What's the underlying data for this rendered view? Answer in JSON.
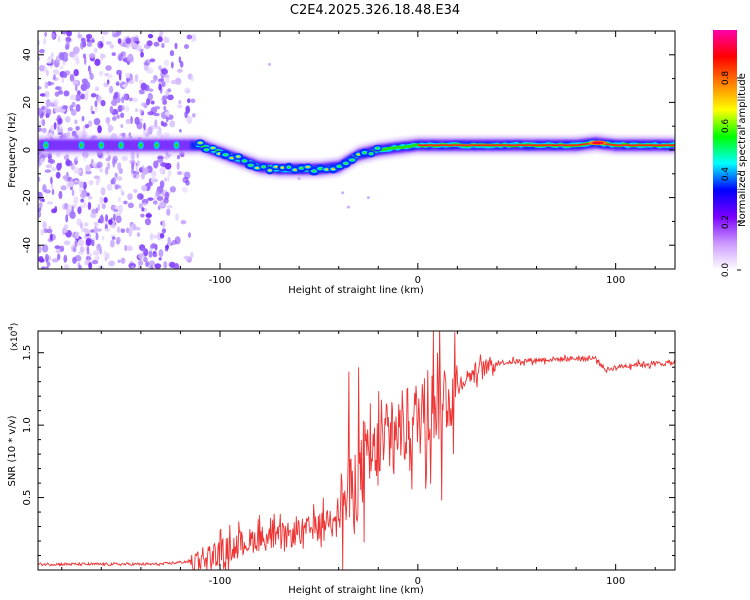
{
  "title": "C2E4.2025.326.18.48.E34",
  "chart_data": [
    {
      "type": "heatmap",
      "name": "spectrogram",
      "xlabel": "Height of straight line (km)",
      "ylabel": "Frequency (Hz)",
      "xlim": [
        -192,
        130
      ],
      "ylim": [
        -50,
        50
      ],
      "xticks": [
        -100,
        0,
        100
      ],
      "yticks": [
        -40,
        -20,
        0,
        20,
        40
      ],
      "colorbar": {
        "label": "Normalized spectral amplitude",
        "range": [
          0,
          1
        ],
        "ticks": [
          "0.0",
          "0.2",
          "0.4",
          "0.6",
          "0.8"
        ],
        "colors": [
          "#ffffff",
          "#cc99ff",
          "#7b00ff",
          "#0000ff",
          "#00ffff",
          "#00ff00",
          "#ffff00",
          "#ff8000",
          "#ff0000",
          "#ff00aa"
        ]
      },
      "noise_region": [
        -192,
        -113
      ],
      "ridge": [
        [
          -192,
          2
        ],
        [
          -170,
          2
        ],
        [
          -140,
          2
        ],
        [
          -120,
          2
        ],
        [
          -110,
          2
        ],
        [
          -100,
          -1
        ],
        [
          -90,
          -4
        ],
        [
          -80,
          -7
        ],
        [
          -70,
          -8
        ],
        [
          -60,
          -8
        ],
        [
          -50,
          -8
        ],
        [
          -40,
          -7
        ],
        [
          -30,
          -2
        ],
        [
          -20,
          0
        ],
        [
          -10,
          1
        ],
        [
          0,
          2
        ],
        [
          20,
          2
        ],
        [
          60,
          2
        ],
        [
          80,
          2
        ],
        [
          90,
          3
        ],
        [
          100,
          2
        ],
        [
          130,
          2
        ]
      ]
    },
    {
      "type": "line",
      "name": "snr",
      "xlabel": "Height of straight line (km)",
      "ylabel": "SNR (10 * v/v)",
      "scale_note": "(x10",
      "scale_exp": "4",
      "scale_close": ")",
      "xlim": [
        -192,
        130
      ],
      "ylim": [
        0,
        1.65
      ],
      "xticks": [
        -100,
        0,
        100
      ],
      "yticks": [
        0.5,
        1.0,
        1.5
      ],
      "ytick_labels": [
        "0.5",
        "1.0",
        "1.5"
      ],
      "color": "#ee3333",
      "envelope": [
        [
          -192,
          0.04
        ],
        [
          -130,
          0.04
        ],
        [
          -115,
          0.06
        ],
        [
          -100,
          0.12
        ],
        [
          -90,
          0.18
        ],
        [
          -80,
          0.22
        ],
        [
          -70,
          0.22
        ],
        [
          -60,
          0.26
        ],
        [
          -50,
          0.3
        ],
        [
          -40,
          0.42
        ],
        [
          -35,
          0.5
        ],
        [
          -30,
          0.62
        ],
        [
          -25,
          0.72
        ],
        [
          -20,
          0.82
        ],
        [
          -10,
          0.95
        ],
        [
          0,
          1.05
        ],
        [
          10,
          1.15
        ],
        [
          20,
          1.28
        ],
        [
          30,
          1.38
        ],
        [
          40,
          1.43
        ],
        [
          60,
          1.45
        ],
        [
          80,
          1.46
        ],
        [
          90,
          1.46
        ],
        [
          95,
          1.38
        ],
        [
          100,
          1.4
        ],
        [
          110,
          1.42
        ],
        [
          130,
          1.43
        ]
      ],
      "spikes": [
        [
          -80,
          0.38
        ],
        [
          -60,
          0.33
        ],
        [
          -35,
          1.37
        ],
        [
          -30,
          1.4
        ],
        [
          -24,
          1.15
        ],
        [
          -10,
          0.85
        ],
        [
          5,
          1.38
        ],
        [
          8,
          1.65
        ],
        [
          10,
          1.5
        ],
        [
          12,
          0.48
        ],
        [
          18,
          0.8
        ]
      ]
    }
  ]
}
